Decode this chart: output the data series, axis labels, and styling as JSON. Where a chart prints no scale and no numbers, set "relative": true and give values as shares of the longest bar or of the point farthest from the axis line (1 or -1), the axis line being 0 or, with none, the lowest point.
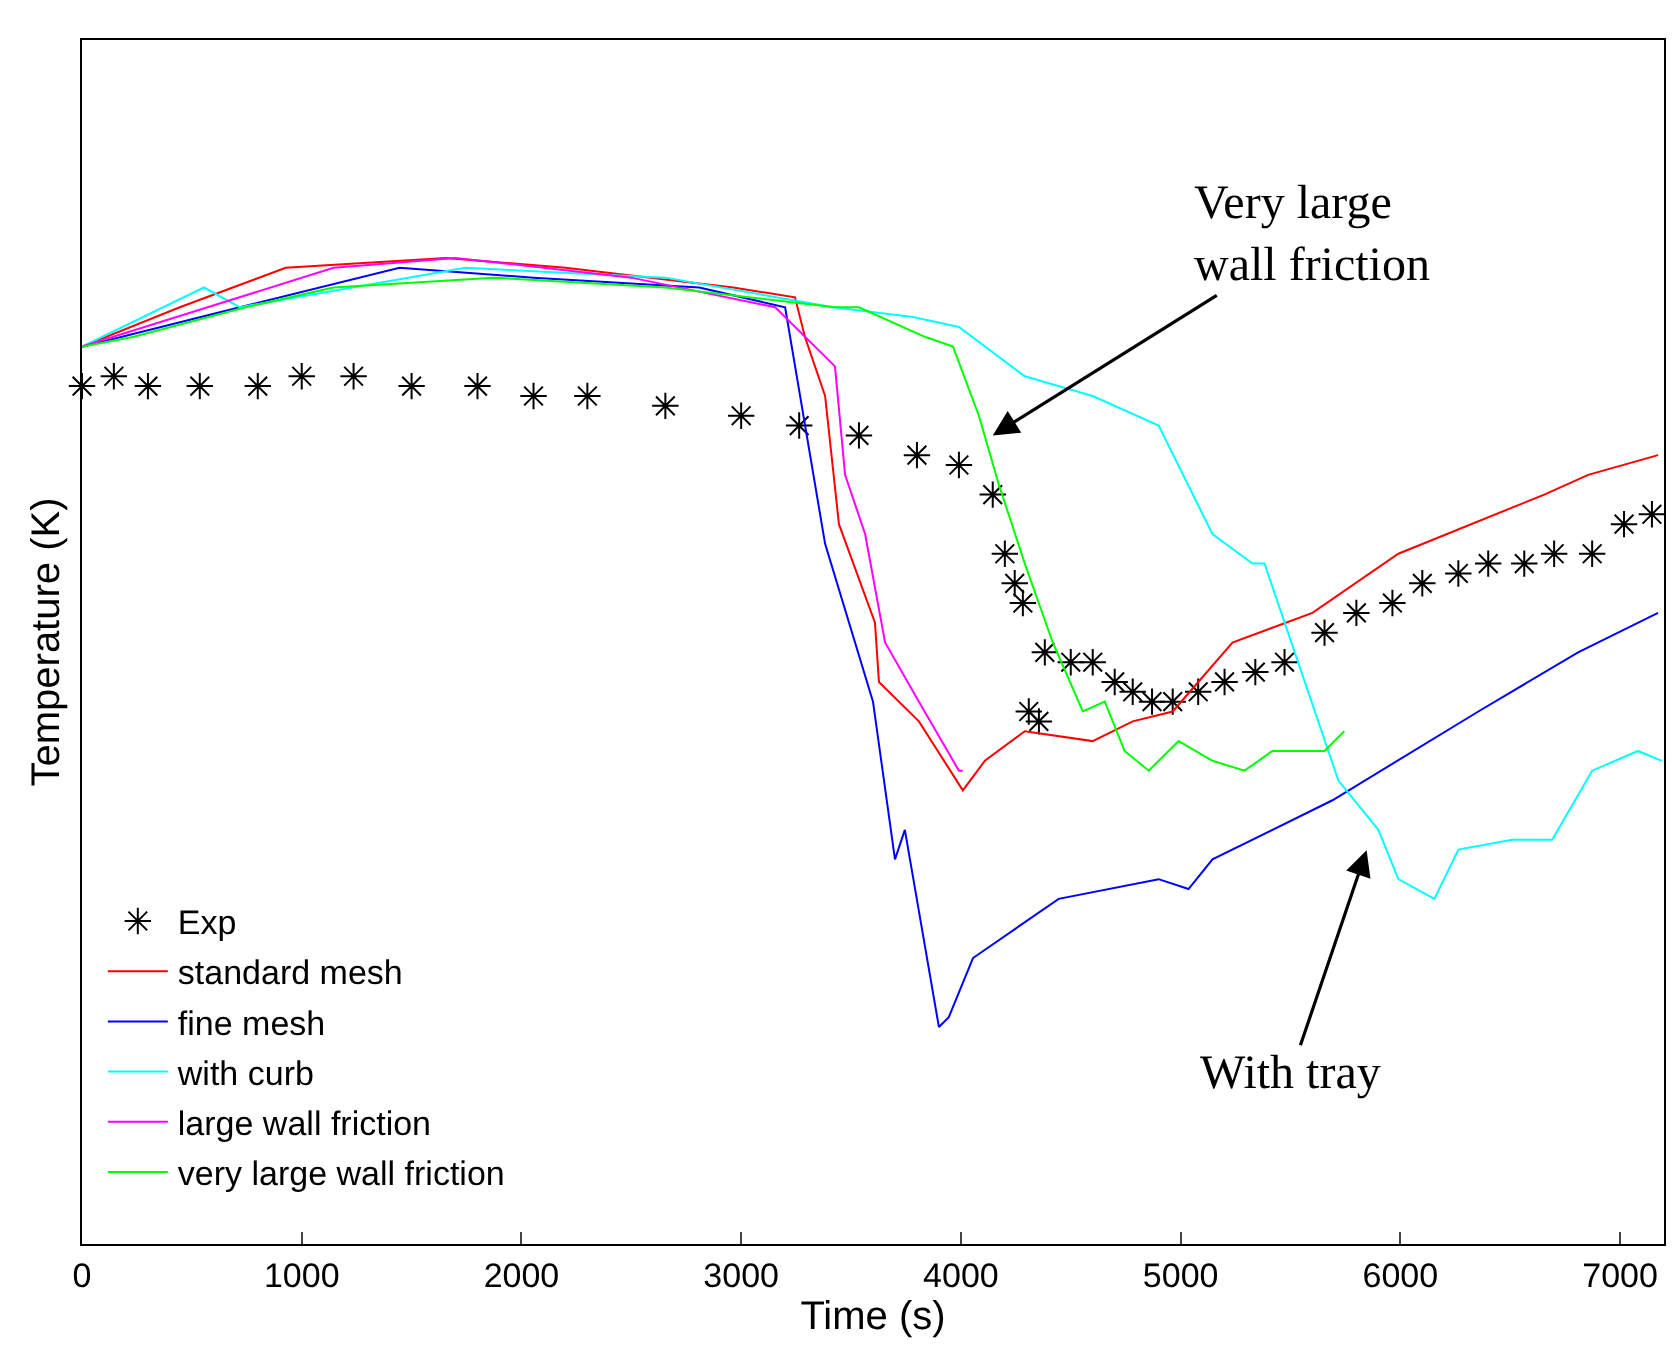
{
  "chart_data": {
    "type": "line",
    "relative": true,
    "xlabel": "Time (s)",
    "ylabel": "Temperature (K)",
    "xlim": [
      0,
      7200
    ],
    "xticks": [
      0,
      1000,
      2000,
      3000,
      4000,
      5000,
      6000,
      7000
    ],
    "grid": false,
    "legend": "bottom left",
    "line_style": "solid",
    "annotations": [
      {
        "text": "Very large\nwall friction",
        "x": 4145,
        "y": 0.82
      },
      "With tray"
    ],
    "series": [
      {
        "name": "Exp",
        "type": "scatter",
        "marker": "cross",
        "color": "#000000",
        "x": [
          0,
          145,
          300,
          536,
          800,
          1000,
          1236,
          1500,
          1800,
          2055,
          2300,
          2655,
          3000,
          3264,
          3536,
          3800,
          3991,
          4145,
          4200,
          4245,
          4282,
          4309,
          4355,
          4382,
          4500,
          4600,
          4700,
          4782,
          4870,
          4964,
          5080,
          5200,
          5340,
          5473,
          5655,
          5800,
          5964,
          6100,
          6264,
          6400,
          6564,
          6700,
          6873,
          7018,
          7145
        ],
        "values": [
          0.87,
          0.88,
          0.87,
          0.87,
          0.87,
          0.88,
          0.88,
          0.87,
          0.87,
          0.86,
          0.86,
          0.85,
          0.84,
          0.83,
          0.82,
          0.8,
          0.79,
          0.76,
          0.7,
          0.67,
          0.65,
          0.54,
          0.53,
          0.6,
          0.59,
          0.59,
          0.57,
          0.56,
          0.55,
          0.55,
          0.56,
          0.57,
          0.58,
          0.59,
          0.62,
          0.64,
          0.65,
          0.67,
          0.68,
          0.69,
          0.69,
          0.7,
          0.7,
          0.73,
          0.74
        ]
      },
      {
        "name": "standard mesh",
        "color": "#ff0000",
        "x": [
          0,
          445,
          927,
          1655,
          2200,
          2964,
          3245,
          3290,
          3382,
          3445,
          3609,
          3627,
          3809,
          4009,
          4109,
          4291,
          4600,
          4782,
          4964,
          5236,
          5600,
          5991,
          6655,
          6855,
          7173
        ],
        "values": [
          0.91,
          0.95,
          0.99,
          1.0,
          0.99,
          0.97,
          0.96,
          0.92,
          0.86,
          0.73,
          0.63,
          0.57,
          0.53,
          0.46,
          0.49,
          0.52,
          0.51,
          0.53,
          0.54,
          0.61,
          0.64,
          0.7,
          0.76,
          0.78,
          0.8
        ]
      },
      {
        "name": "fine mesh",
        "color": "#0000ff",
        "x": [
          0,
          718,
          1445,
          2055,
          2809,
          3200,
          3382,
          3600,
          3700,
          3745,
          3900,
          3945,
          4055,
          4445,
          4900,
          5036,
          5145,
          5691,
          6355,
          6809,
          7173
        ],
        "values": [
          0.91,
          0.95,
          0.99,
          0.98,
          0.97,
          0.95,
          0.71,
          0.55,
          0.39,
          0.42,
          0.22,
          0.23,
          0.29,
          0.35,
          0.37,
          0.36,
          0.39,
          0.45,
          0.54,
          0.6,
          0.64
        ]
      },
      {
        "name": "with curb",
        "color": "#00ffff",
        "x": [
          0,
          555,
          718,
          1745,
          2655,
          3418,
          3782,
          3991,
          4291,
          4600,
          4900,
          5145,
          5327,
          5382,
          5718,
          5900,
          5991,
          6155,
          6264,
          6509,
          6691,
          6873,
          7082,
          7190
        ],
        "values": [
          0.91,
          0.97,
          0.95,
          0.99,
          0.98,
          0.95,
          0.94,
          0.93,
          0.88,
          0.86,
          0.83,
          0.72,
          0.69,
          0.69,
          0.47,
          0.42,
          0.37,
          0.35,
          0.4,
          0.41,
          0.41,
          0.48,
          0.5,
          0.49
        ]
      },
      {
        "name": "large wall friction",
        "color": "#ff00ff",
        "x": [
          0,
          1145,
          1700,
          2500,
          3155,
          3427,
          3473,
          3564,
          3655,
          3809,
          3991,
          4009
        ],
        "values": [
          0.91,
          0.99,
          1.0,
          0.98,
          0.95,
          0.89,
          0.78,
          0.72,
          0.61,
          0.55,
          0.48,
          0.48
        ]
      },
      {
        "name": "very large wall friction",
        "color": "#00ff00",
        "x": [
          0,
          236,
          745,
          1145,
          1873,
          2655,
          3427,
          3536,
          3836,
          3964,
          4082,
          4173,
          4291,
          4418,
          4555,
          4655,
          4745,
          4855,
          4991,
          5145,
          5291,
          5418,
          5464,
          5655,
          5745
        ],
        "values": [
          0.91,
          0.92,
          0.95,
          0.97,
          0.98,
          0.97,
          0.95,
          0.95,
          0.92,
          0.91,
          0.84,
          0.77,
          0.69,
          0.61,
          0.54,
          0.55,
          0.5,
          0.48,
          0.51,
          0.49,
          0.48,
          0.5,
          0.5,
          0.5,
          0.52
        ]
      }
    ]
  }
}
